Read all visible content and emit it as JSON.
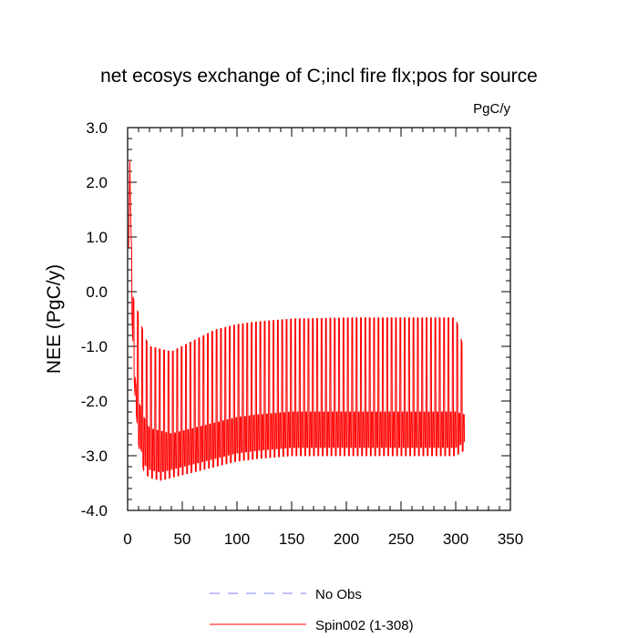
{
  "chart_data": {
    "type": "line",
    "title": "net ecosys exchange of C;incl fire flx;pos for source",
    "units_label": "PgC/y",
    "ylabel": "NEE  (PgC/y)",
    "xlabel": "",
    "xlim": [
      0,
      350
    ],
    "ylim": [
      -4.0,
      3.0
    ],
    "x_ticks": [
      0,
      50,
      100,
      150,
      200,
      250,
      300,
      350
    ],
    "x_tick_labels": [
      "0",
      "50",
      "100",
      "150",
      "200",
      "250",
      "300",
      "350"
    ],
    "y_ticks": [
      -4.0,
      -3.0,
      -2.0,
      -1.0,
      0.0,
      1.0,
      2.0,
      3.0
    ],
    "y_tick_labels": [
      "-4.0",
      "-3.0",
      "-2.0",
      "-1.0",
      "0.0",
      "1.0",
      "2.0",
      "3.0"
    ],
    "grid": false,
    "legend_position": "bottom-center",
    "series": [
      {
        "name": "No Obs",
        "color": "#8080ff",
        "dash": "dashed",
        "values": []
      },
      {
        "name": "Spin002 (1-308)",
        "color": "#ff0000",
        "dash": "solid",
        "x_range": [
          1,
          308
        ],
        "cycle_period_years": 4,
        "envelope_x": [
          1,
          2,
          3,
          5,
          8,
          10,
          15,
          20,
          30,
          40,
          50,
          60,
          80,
          100,
          120,
          150,
          200,
          250,
          300,
          308
        ],
        "envelope_max": [
          0.8,
          2.4,
          1.2,
          -0.1,
          -0.3,
          -0.4,
          -0.8,
          -1.0,
          -1.05,
          -1.1,
          -1.0,
          -0.9,
          -0.7,
          -0.6,
          -0.55,
          -0.5,
          -0.48,
          -0.48,
          -0.48,
          -1.1
        ],
        "envelope_mid": [
          0.8,
          1.8,
          0.5,
          -1.1,
          -1.8,
          -2.0,
          -2.3,
          -2.5,
          -2.55,
          -2.6,
          -2.55,
          -2.5,
          -2.4,
          -2.3,
          -2.25,
          -2.2,
          -2.2,
          -2.2,
          -2.2,
          -2.25
        ],
        "envelope_min": [
          0.8,
          1.5,
          0.0,
          -1.2,
          -2.4,
          -2.8,
          -3.3,
          -3.4,
          -3.45,
          -3.4,
          -3.35,
          -3.3,
          -3.2,
          -3.1,
          -3.05,
          -3.0,
          -3.0,
          -3.0,
          -3.0,
          -2.9
        ]
      }
    ]
  }
}
